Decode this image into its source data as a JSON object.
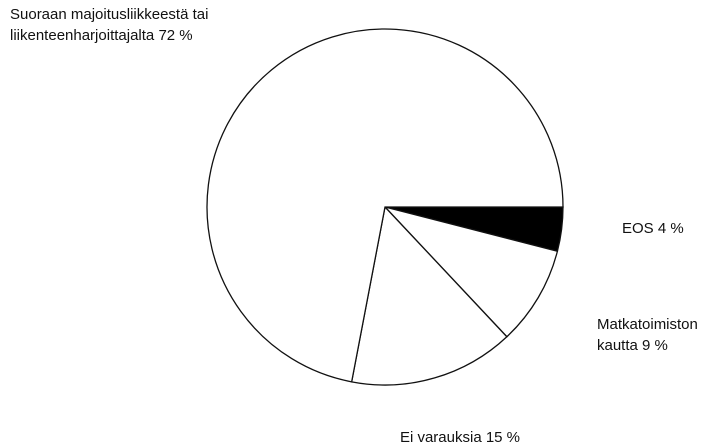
{
  "chart_data": {
    "type": "pie",
    "categories": [
      "EOS",
      "Matkatoimiston kautta",
      "Ei varauksia",
      "Suoraan majoitusliikkeestä tai liikenteenharjoittajalta"
    ],
    "values": [
      4,
      9,
      15,
      72
    ],
    "value_labels": [
      "4 %",
      "9 %",
      "15 %",
      "72 %"
    ],
    "colors": [
      "#000000",
      "#ffffff",
      "#ffffff",
      "#ffffff"
    ]
  }
}
